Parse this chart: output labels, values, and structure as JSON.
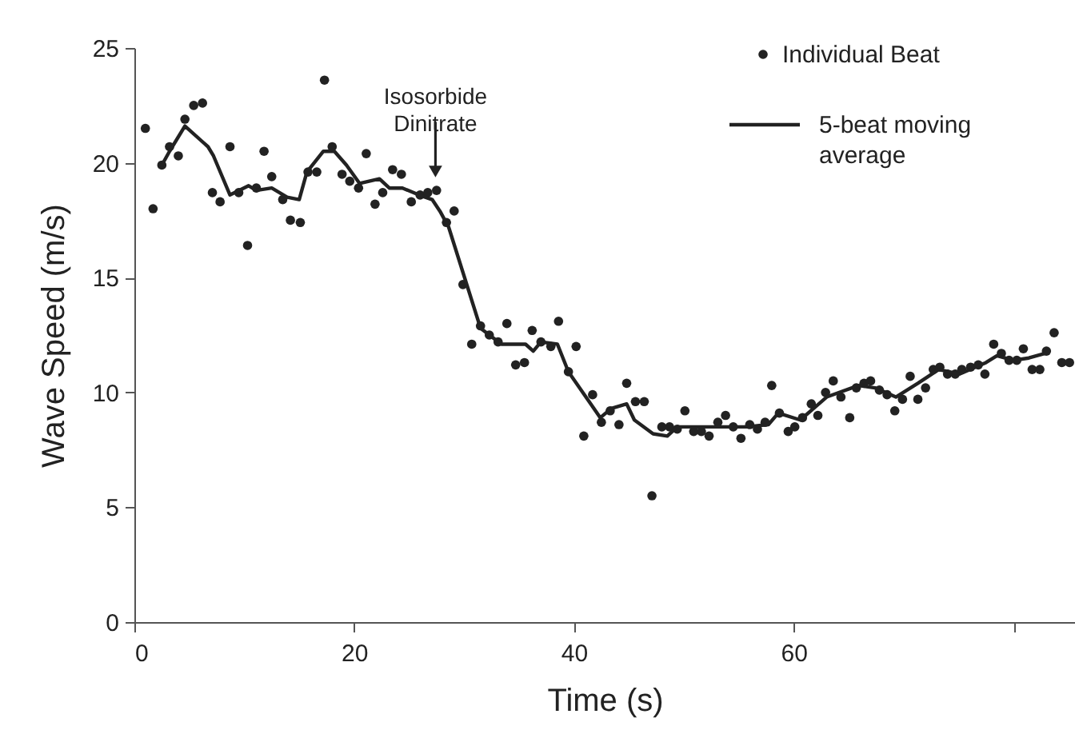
{
  "chart_data": {
    "type": "scatter",
    "xlabel": "Time (s)",
    "ylabel": "Wave Speed (m/s)",
    "xlim": [
      0,
      85.6
    ],
    "ylim": [
      0,
      25
    ],
    "xticks": [
      0,
      20,
      40,
      60,
      {
        "value": 80,
        "label": null
      }
    ],
    "yticks": [
      0,
      5,
      10,
      15,
      20,
      25
    ],
    "grid": false,
    "legend": "top right",
    "annotations": [
      {
        "text": "Isosorbide Dinitrate",
        "x": 27.4,
        "y": 18.3
      }
    ],
    "series": [
      {
        "name": "Individual Beat",
        "type": "scatter",
        "marker": "circle",
        "color": "#222222",
        "x": [
          1.0,
          1.7,
          2.5,
          3.2,
          4.0,
          4.6,
          5.4,
          6.2,
          7.1,
          7.8,
          8.7,
          9.5,
          10.3,
          11.1,
          11.8,
          12.5,
          13.5,
          14.2,
          15.1,
          15.8,
          16.6,
          17.3,
          18.0,
          18.9,
          19.6,
          20.4,
          21.1,
          21.9,
          22.6,
          23.5,
          24.3,
          25.2,
          26.0,
          26.7,
          27.5,
          28.4,
          29.1,
          29.9,
          30.7,
          31.5,
          32.3,
          33.1,
          33.9,
          34.7,
          35.5,
          36.2,
          37.0,
          37.9,
          38.6,
          39.5,
          40.2,
          40.9,
          41.7,
          42.5,
          43.3,
          44.1,
          44.8,
          45.6,
          46.4,
          47.1,
          48.0,
          48.7,
          49.4,
          50.1,
          50.9,
          51.6,
          52.3,
          53.1,
          53.8,
          54.5,
          55.2,
          56.0,
          56.7,
          57.4,
          58.0,
          58.7,
          59.5,
          60.1,
          60.8,
          61.6,
          62.2,
          62.9,
          63.6,
          64.3,
          65.1,
          65.7,
          66.4,
          67.0,
          67.8,
          68.5,
          69.2,
          69.9,
          70.6,
          71.3,
          72.0,
          72.7,
          73.3,
          74.0,
          74.7,
          75.3,
          76.1,
          76.8,
          77.4,
          78.2,
          78.9,
          79.6,
          80.3,
          80.9,
          81.7,
          82.4,
          83.0,
          83.7,
          84.4,
          85.1
        ],
        "values": [
          21.5,
          18.0,
          19.9,
          20.7,
          20.3,
          21.9,
          22.5,
          22.6,
          18.7,
          18.3,
          20.7,
          18.7,
          16.4,
          18.9,
          20.5,
          19.4,
          18.4,
          17.5,
          17.4,
          19.6,
          19.6,
          23.6,
          20.7,
          19.5,
          19.2,
          18.9,
          20.4,
          18.2,
          18.7,
          19.7,
          19.5,
          18.3,
          18.6,
          18.7,
          18.8,
          17.4,
          17.9,
          14.7,
          12.1,
          12.9,
          12.5,
          12.2,
          13.0,
          11.2,
          11.3,
          12.7,
          12.2,
          12.0,
          13.1,
          10.9,
          12.0,
          8.1,
          9.9,
          8.7,
          9.2,
          8.6,
          10.4,
          9.6,
          9.6,
          5.5,
          8.5,
          8.5,
          8.4,
          9.2,
          8.3,
          8.3,
          8.1,
          8.7,
          9.0,
          8.5,
          8.0,
          8.6,
          8.4,
          8.7,
          10.3,
          9.1,
          8.3,
          8.5,
          8.9,
          9.5,
          9.0,
          10.0,
          10.5,
          9.8,
          8.9,
          10.2,
          10.4,
          10.5,
          10.1,
          9.9,
          9.2,
          9.7,
          10.7,
          9.7,
          10.2,
          11.0,
          11.1,
          10.8,
          10.8,
          11.0,
          11.1,
          11.2,
          10.8,
          12.1,
          11.7,
          11.4,
          11.4,
          11.9,
          11.0,
          11.0,
          11.8,
          12.6,
          11.3,
          11.3
        ]
      },
      {
        "name": "5-beat moving average",
        "type": "line",
        "line_style": "solid",
        "color": "#222222",
        "x": [
          2.5,
          3.2,
          4.6,
          6.7,
          7.2,
          8.7,
          10.4,
          11.1,
          12.5,
          13.9,
          15.0,
          15.7,
          17.2,
          18.2,
          19.3,
          20.5,
          22.3,
          23.2,
          24.4,
          25.9,
          27.1,
          27.8,
          28.6,
          31.5,
          33.4,
          35.6,
          36.3,
          37.0,
          38.5,
          39.5,
          42.4,
          43.4,
          44.8,
          45.5,
          47.2,
          48.5,
          49.4,
          52.8,
          55.7,
          57.7,
          58.6,
          60.6,
          63.0,
          65.9,
          67.4,
          69.3,
          71.3,
          73.2,
          75.1,
          77.5,
          78.5,
          80.0,
          81.4,
          82.9
        ],
        "values": [
          19.9,
          20.5,
          21.6,
          20.7,
          20.3,
          18.6,
          19.0,
          18.8,
          18.9,
          18.5,
          18.4,
          19.6,
          20.5,
          20.5,
          19.9,
          19.1,
          19.3,
          18.9,
          18.9,
          18.6,
          18.4,
          17.9,
          17.2,
          12.8,
          12.1,
          12.1,
          11.8,
          12.2,
          12.1,
          10.9,
          8.9,
          9.3,
          9.5,
          8.8,
          8.2,
          8.1,
          8.5,
          8.5,
          8.5,
          8.6,
          9.1,
          8.8,
          9.8,
          10.3,
          10.2,
          9.8,
          10.4,
          11.0,
          10.8,
          11.3,
          11.6,
          11.4,
          11.5,
          11.7
        ]
      }
    ]
  }
}
